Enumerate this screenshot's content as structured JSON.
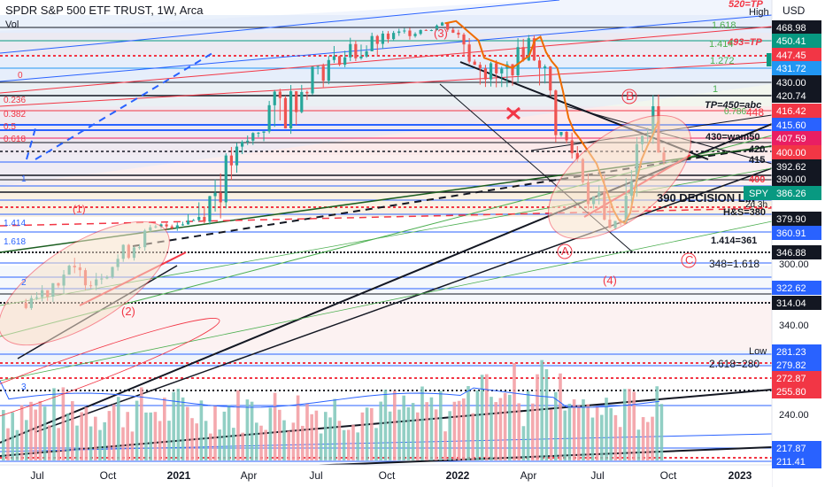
{
  "header": {
    "title": "SPDR S&P 500 ETF TRUST, 1W, Arca",
    "vol_label": "Vol"
  },
  "axis": {
    "currency": "USD",
    "high_label": "High",
    "low_label": "Low",
    "symbol": "SPY",
    "countdown": "2d 3h"
  },
  "chart_data": {
    "type": "candlestick",
    "title": "SPDR S&P 500 ETF TRUST, 1W, Arca",
    "ylim": [
      207,
      478
    ],
    "ylabel": "USD",
    "x_ticks": [
      "Jul",
      "Oct",
      "2021",
      "Apr",
      "Jul",
      "Oct",
      "2022",
      "Apr",
      "Jul",
      "Oct",
      "2023"
    ],
    "y_ticks": [
      240.0,
      300.0,
      340.0
    ],
    "price_tags": [
      {
        "value": "468.98",
        "color": "#131722"
      },
      {
        "value": "450.41",
        "color": "#089981"
      },
      {
        "value": "447.45",
        "color": "#f23645"
      },
      {
        "value": "431.72",
        "color": "#2196f3"
      },
      {
        "value": "430.00",
        "color": "#131722"
      },
      {
        "value": "420.74",
        "color": "#131722"
      },
      {
        "value": "416.42",
        "color": "#f23645"
      },
      {
        "value": "415.60",
        "color": "#2962ff"
      },
      {
        "value": "407.59",
        "color": "#e91e63"
      },
      {
        "value": "400.00",
        "color": "#f23645"
      },
      {
        "value": "392.62",
        "color": "#131722"
      },
      {
        "value": "390.00",
        "color": "#131722"
      },
      {
        "value": "386.26",
        "color": "#089981"
      },
      {
        "value": "379.90",
        "color": "#131722"
      },
      {
        "value": "360.91",
        "color": "#2962ff"
      },
      {
        "value": "346.88",
        "color": "#131722"
      },
      {
        "value": "322.62",
        "color": "#2962ff"
      },
      {
        "value": "314.04",
        "color": "#131722"
      },
      {
        "value": "281.23",
        "color": "#2962ff"
      },
      {
        "value": "279.82",
        "color": "#2962ff"
      },
      {
        "value": "272.87",
        "color": "#f23645"
      },
      {
        "value": "255.80",
        "color": "#f23645"
      },
      {
        "value": "217.87",
        "color": "#2962ff"
      },
      {
        "value": "211.41",
        "color": "#2962ff"
      }
    ],
    "series": [
      {
        "name": "SPY weekly",
        "closes": [
          [
            2020.5,
            317
          ],
          [
            2020.6,
            334
          ],
          [
            2020.7,
            330
          ],
          [
            2020.8,
            345
          ],
          [
            2020.92,
            366
          ],
          [
            2021.0,
            375
          ],
          [
            2021.1,
            383
          ],
          [
            2021.2,
            396
          ],
          [
            2021.3,
            415
          ],
          [
            2021.4,
            420
          ],
          [
            2021.5,
            435
          ],
          [
            2021.6,
            445
          ],
          [
            2021.75,
            455
          ],
          [
            2021.85,
            466
          ],
          [
            2021.95,
            474
          ],
          [
            2022.05,
            440
          ],
          [
            2022.15,
            428
          ],
          [
            2022.25,
            452
          ],
          [
            2022.35,
            412
          ],
          [
            2022.45,
            390
          ],
          [
            2022.55,
            370
          ],
          [
            2022.62,
            396
          ],
          [
            2022.68,
            415
          ],
          [
            2022.75,
            390
          ]
        ]
      }
    ],
    "annotations": [
      {
        "text": "(3)",
        "color": "#f23645"
      },
      {
        "text": "(2)",
        "color": "#f23645"
      },
      {
        "text": "(4)",
        "color": "#f23645"
      },
      {
        "text": "(1)",
        "color": "#f23645"
      },
      {
        "text": "B",
        "color": "#f23645"
      },
      {
        "text": "A",
        "color": "#f23645"
      },
      {
        "text": "C",
        "color": "#f23645"
      },
      {
        "text": "520=TP",
        "color": "#f23645"
      },
      {
        "text": "493=TP",
        "color": "#f23645"
      },
      {
        "text": "TP=450=abc",
        "color": "#131722"
      },
      {
        "text": "448",
        "color": "#f23645"
      },
      {
        "text": "430=wam50",
        "color": "#131722"
      },
      {
        "text": "420",
        "color": "#131722"
      },
      {
        "text": "415",
        "color": "#131722"
      },
      {
        "text": "400",
        "color": "#f23645"
      },
      {
        "text": "390 DECISION L...",
        "color": "#131722"
      },
      {
        "text": "H&S=380",
        "color": "#131722"
      },
      {
        "text": "1.414=361",
        "color": "#131722"
      },
      {
        "text": "348=1.618",
        "color": "#131722"
      },
      {
        "text": "2.618=280",
        "color": "#131722"
      },
      {
        "text": "1.618",
        "color": "#4caf50"
      },
      {
        "text": "1.414",
        "color": "#4caf50"
      },
      {
        "text": "1.272",
        "color": "#4caf50"
      },
      {
        "text": "1",
        "color": "#4caf50"
      },
      {
        "text": "0.786",
        "color": "#4caf50"
      },
      {
        "text": "0.236",
        "color": "#f23645"
      },
      {
        "text": "0.382",
        "color": "#f23645"
      },
      {
        "text": "0.5",
        "color": "#f23645"
      },
      {
        "text": "0.618",
        "color": "#f23645"
      },
      {
        "text": "0",
        "color": "#f23645"
      },
      {
        "text": "1",
        "color": "#2962ff"
      },
      {
        "text": "1.414",
        "color": "#2962ff"
      },
      {
        "text": "1.618",
        "color": "#2962ff"
      },
      {
        "text": "2",
        "color": "#2962ff"
      },
      {
        "text": "3",
        "color": "#2962ff"
      }
    ]
  }
}
